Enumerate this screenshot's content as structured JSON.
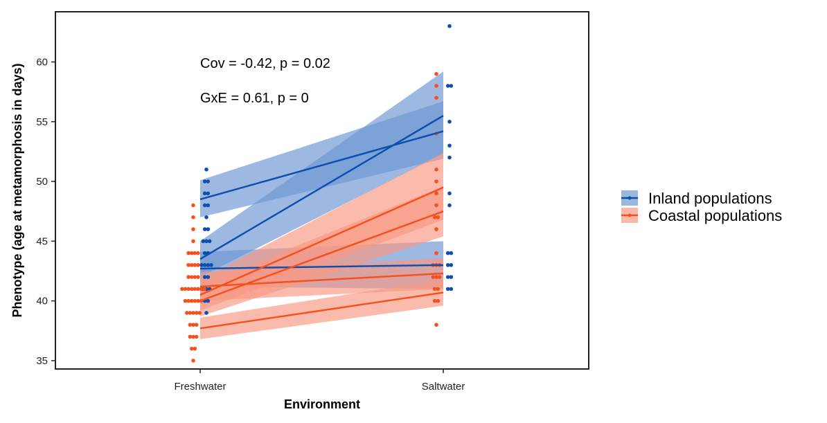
{
  "chart_data": {
    "type": "line",
    "xlabel": "Environment",
    "ylabel": "Phenotype (age at metamorphosis in days)",
    "categories": [
      "Freshwater",
      "Saltwater"
    ],
    "ylim": [
      34.3,
      64.2
    ],
    "yticks": [
      35,
      40,
      45,
      50,
      55,
      60
    ],
    "grid": false,
    "legend_position": "right",
    "annotations": [
      "Cov = -0.42, p = 0.02",
      "GxE = 0.61, p = 0"
    ],
    "legend": [
      {
        "label": "Inland populations",
        "color": "#0d4fae",
        "fill": "#6f98d3"
      },
      {
        "label": "Coastal populations",
        "color": "#f4511e",
        "fill": "#f89a84"
      }
    ],
    "series": [
      {
        "group": "Inland populations",
        "values": [
          48.5,
          54.2
        ],
        "ci_low": [
          47.0,
          51.9
        ],
        "ci_high": [
          50.1,
          56.7
        ]
      },
      {
        "group": "Inland populations",
        "values": [
          43.5,
          55.5
        ],
        "ci_low": [
          42.0,
          52.3
        ],
        "ci_high": [
          45.0,
          59.2
        ]
      },
      {
        "group": "Inland populations",
        "values": [
          42.7,
          43.0
        ],
        "ci_low": [
          41.2,
          41.0
        ],
        "ci_high": [
          44.1,
          45.0
        ]
      },
      {
        "group": "Coastal populations",
        "values": [
          40.5,
          49.5
        ],
        "ci_low": [
          39.2,
          46.8
        ],
        "ci_high": [
          41.8,
          52.4
        ]
      },
      {
        "group": "Coastal populations",
        "values": [
          40.0,
          47.5
        ],
        "ci_low": [
          38.7,
          45.4
        ],
        "ci_high": [
          41.3,
          49.6
        ]
      },
      {
        "group": "Coastal populations",
        "values": [
          41.2,
          42.3
        ],
        "ci_low": [
          40.0,
          41.0
        ],
        "ci_high": [
          42.4,
          43.6
        ]
      },
      {
        "group": "Coastal populations",
        "values": [
          37.7,
          40.7
        ],
        "ci_low": [
          36.8,
          39.6
        ],
        "ci_high": [
          38.6,
          41.8
        ]
      }
    ],
    "points": {
      "Inland populations": {
        "Freshwater": [
          51,
          50,
          50,
          49,
          49,
          48,
          48,
          47,
          46,
          46,
          45,
          45,
          45,
          44,
          44,
          43,
          43,
          43,
          43,
          42,
          42,
          41,
          41,
          41,
          40,
          40,
          39
        ],
        "Saltwater": [
          63,
          58,
          58,
          55,
          53,
          52,
          49,
          48,
          44,
          44,
          43,
          43,
          42,
          42,
          41,
          41
        ]
      },
      "Coastal populations": {
        "Freshwater": [
          48,
          47,
          46,
          45,
          44,
          44,
          44,
          44,
          43,
          43,
          43,
          43,
          42,
          42,
          42,
          42,
          41,
          41,
          41,
          41,
          41,
          41,
          41,
          41,
          40,
          40,
          40,
          40,
          40,
          40,
          39,
          39,
          39,
          39,
          39,
          38,
          38,
          38,
          37,
          37,
          37,
          36,
          36,
          35
        ],
        "Saltwater": [
          59,
          58,
          57,
          54,
          51,
          50,
          49,
          48,
          47,
          47,
          46,
          44,
          43,
          43,
          43,
          42,
          42,
          42,
          41,
          41,
          40,
          40,
          38
        ]
      }
    }
  }
}
